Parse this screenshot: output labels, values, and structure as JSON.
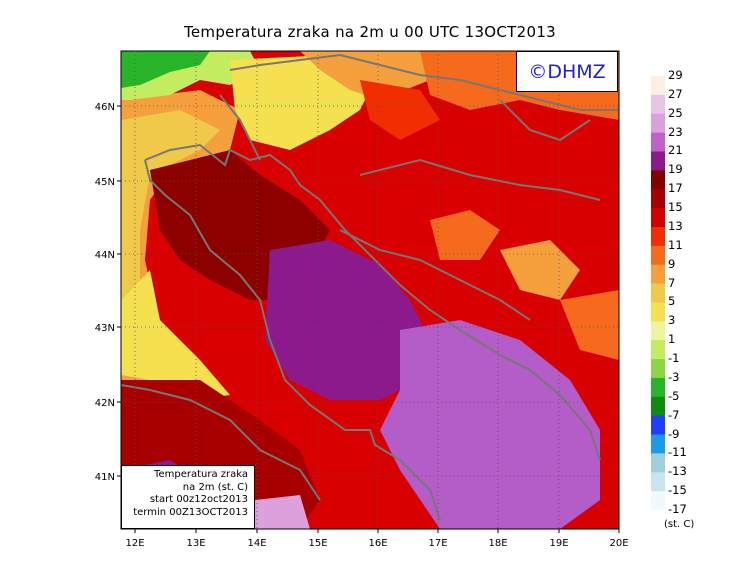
{
  "title": "Temperatura zraka na 2m u 00 UTC 13OCT2013",
  "logo_text": "©DHMZ",
  "info": {
    "line1": "Temperatura zraka",
    "line2": "na 2m (st. C)",
    "line3": "start 00z12oct2013",
    "line4": "termin 00Z13OCT2013"
  },
  "lat_labels": [
    "46N",
    "45N",
    "44N",
    "43N",
    "42N",
    "41N"
  ],
  "lon_labels": [
    "12E",
    "13E",
    "14E",
    "15E",
    "16E",
    "17E",
    "18E",
    "19E",
    "20E"
  ],
  "legend": {
    "unit": "(st. C)",
    "levels": [
      "29",
      "27",
      "25",
      "23",
      "21",
      "19",
      "17",
      "15",
      "13",
      "11",
      "9",
      "7",
      "5",
      "3",
      "1",
      "-1",
      "-3",
      "-5",
      "-7",
      "-9",
      "-11",
      "-13",
      "-15",
      "-17"
    ],
    "colors": [
      "#fdf0e0",
      "#e8c4e6",
      "#dca0dc",
      "#c060c8",
      "#8c1a8c",
      "#820000",
      "#a80000",
      "#d20000",
      "#f02e00",
      "#f66a1e",
      "#f5a03c",
      "#f0c84a",
      "#f5e150",
      "#ecf49e",
      "#c4ec60",
      "#8cd646",
      "#28b428",
      "#0f8c0f",
      "#1f3cff",
      "#1a9ae8",
      "#a0d0e0",
      "#c8e4f0",
      "#f0fafc"
    ]
  },
  "colors": {
    "coastline": "#777777",
    "sea_purple": "#b45cc8",
    "dark_red": "#8c0000",
    "logo_blue": "#1f1fd0"
  }
}
